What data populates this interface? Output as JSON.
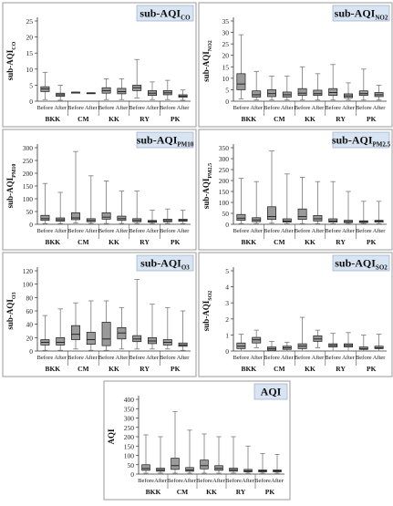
{
  "colors": {
    "box_fill": "#9a9a9a",
    "box_stroke": "#1a1a1a",
    "whisker": "#7a7a7a",
    "title_bg": "#d9e4f2",
    "axis": "#333333",
    "panel_border": "#9a9a9a"
  },
  "chart_data": [
    {
      "type": "box",
      "title_main": "sub-AQI",
      "title_sub": "CO",
      "ylabel_main": "sub-AQI",
      "ylabel_sub": "CO",
      "ylim": [
        0,
        25
      ],
      "yticks": [
        0,
        5,
        10,
        15,
        20,
        25
      ],
      "provinces": [
        "BKK",
        "CM",
        "KK",
        "RY",
        "PK"
      ],
      "periods": [
        "Before",
        "After"
      ],
      "boxes": [
        {
          "province": "BKK",
          "period": "Before",
          "min": 0.5,
          "q1": 3.0,
          "median": 3.8,
          "q3": 4.5,
          "max": 9.0
        },
        {
          "province": "BKK",
          "period": "After",
          "min": 0.3,
          "q1": 1.5,
          "median": 2.0,
          "q3": 2.5,
          "max": 5.0
        },
        {
          "province": "CM",
          "period": "Before",
          "min": 2.8,
          "q1": 2.8,
          "median": 2.8,
          "q3": 2.8,
          "max": 2.8
        },
        {
          "province": "CM",
          "period": "After",
          "min": 2.6,
          "q1": 2.6,
          "median": 2.6,
          "q3": 2.6,
          "max": 2.6
        },
        {
          "province": "KK",
          "period": "Before",
          "min": 0.5,
          "q1": 2.5,
          "median": 3.3,
          "q3": 4.2,
          "max": 7.0
        },
        {
          "province": "KK",
          "period": "After",
          "min": 0.5,
          "q1": 2.3,
          "median": 3.0,
          "q3": 4.0,
          "max": 7.0
        },
        {
          "province": "RY",
          "period": "Before",
          "min": 1.0,
          "q1": 3.3,
          "median": 4.2,
          "q3": 5.0,
          "max": 13.0
        },
        {
          "province": "RY",
          "period": "After",
          "min": 0.5,
          "q1": 1.8,
          "median": 2.5,
          "q3": 3.3,
          "max": 6.0
        },
        {
          "province": "PK",
          "period": "Before",
          "min": 0.5,
          "q1": 2.0,
          "median": 2.6,
          "q3": 3.3,
          "max": 6.5
        },
        {
          "province": "PK",
          "period": "After",
          "min": 0.3,
          "q1": 1.2,
          "median": 1.6,
          "q3": 2.0,
          "max": 3.5
        }
      ]
    },
    {
      "type": "box",
      "title_main": "sub-AQI",
      "title_sub": "NO2",
      "ylabel_main": "sub-AQI",
      "ylabel_sub": "NO2",
      "ylim": [
        0,
        35
      ],
      "yticks": [
        0,
        5,
        10,
        15,
        20,
        25,
        30,
        35
      ],
      "provinces": [
        "BKK",
        "CM",
        "KK",
        "RY",
        "PK"
      ],
      "periods": [
        "Before",
        "After"
      ],
      "boxes": [
        {
          "province": "BKK",
          "period": "Before",
          "min": 1.0,
          "q1": 5.0,
          "median": 7.5,
          "q3": 12.0,
          "max": 29.0
        },
        {
          "province": "BKK",
          "period": "After",
          "min": 0.5,
          "q1": 1.8,
          "median": 2.8,
          "q3": 4.5,
          "max": 13.0
        },
        {
          "province": "CM",
          "period": "Before",
          "min": 0.5,
          "q1": 2.0,
          "median": 3.3,
          "q3": 5.0,
          "max": 11.0
        },
        {
          "province": "CM",
          "period": "After",
          "min": 0.5,
          "q1": 1.8,
          "median": 2.8,
          "q3": 4.0,
          "max": 11.0
        },
        {
          "province": "KK",
          "period": "Before",
          "min": 0.5,
          "q1": 2.5,
          "median": 3.5,
          "q3": 5.5,
          "max": 15.0
        },
        {
          "province": "KK",
          "period": "After",
          "min": 0.5,
          "q1": 2.5,
          "median": 3.3,
          "q3": 4.8,
          "max": 12.0
        },
        {
          "province": "RY",
          "period": "Before",
          "min": 0.5,
          "q1": 2.5,
          "median": 3.8,
          "q3": 5.5,
          "max": 16.0
        },
        {
          "province": "RY",
          "period": "After",
          "min": 0.5,
          "q1": 1.5,
          "median": 2.3,
          "q3": 3.2,
          "max": 8.0
        },
        {
          "province": "PK",
          "period": "Before",
          "min": 0.5,
          "q1": 2.5,
          "median": 3.3,
          "q3": 4.5,
          "max": 14.0
        },
        {
          "province": "PK",
          "period": "After",
          "min": 0.5,
          "q1": 2.0,
          "median": 2.8,
          "q3": 3.8,
          "max": 7.0
        }
      ]
    },
    {
      "type": "box",
      "title_main": "sub-AQI",
      "title_sub": "PM10",
      "ylabel_main": "sub-AQI",
      "ylabel_sub": "PM10",
      "ylim": [
        0,
        300
      ],
      "yticks": [
        0,
        50,
        100,
        150,
        200,
        250,
        300
      ],
      "provinces": [
        "BKK",
        "CM",
        "KK",
        "RY",
        "PK"
      ],
      "periods": [
        "Before",
        "After"
      ],
      "boxes": [
        {
          "province": "BKK",
          "period": "Before",
          "min": 3,
          "q1": 15,
          "median": 22,
          "q3": 35,
          "max": 160
        },
        {
          "province": "BKK",
          "period": "After",
          "min": 3,
          "q1": 12,
          "median": 18,
          "q3": 25,
          "max": 125
        },
        {
          "province": "CM",
          "period": "Before",
          "min": 5,
          "q1": 18,
          "median": 25,
          "q3": 45,
          "max": 285
        },
        {
          "province": "CM",
          "period": "After",
          "min": 3,
          "q1": 10,
          "median": 15,
          "q3": 22,
          "max": 190
        },
        {
          "province": "KK",
          "period": "Before",
          "min": 3,
          "q1": 20,
          "median": 28,
          "q3": 45,
          "max": 170
        },
        {
          "province": "KK",
          "period": "After",
          "min": 3,
          "q1": 15,
          "median": 22,
          "q3": 32,
          "max": 130
        },
        {
          "province": "RY",
          "period": "Before",
          "min": 3,
          "q1": 10,
          "median": 15,
          "q3": 22,
          "max": 130
        },
        {
          "province": "RY",
          "period": "After",
          "min": 3,
          "q1": 8,
          "median": 11,
          "q3": 15,
          "max": 55
        },
        {
          "province": "PK",
          "period": "Before",
          "min": 3,
          "q1": 10,
          "median": 14,
          "q3": 20,
          "max": 60
        },
        {
          "province": "PK",
          "period": "After",
          "min": 3,
          "q1": 12,
          "median": 15,
          "q3": 20,
          "max": 55
        }
      ]
    },
    {
      "type": "box",
      "title_main": "sub-AQI",
      "title_sub": "PM2.5",
      "ylabel_main": "sub-AQI",
      "ylabel_sub": "PM2.5",
      "ylim": [
        0,
        350
      ],
      "yticks": [
        0,
        50,
        100,
        150,
        200,
        250,
        300,
        350
      ],
      "provinces": [
        "BKK",
        "CM",
        "KK",
        "RY",
        "PK"
      ],
      "periods": [
        "Before",
        "After"
      ],
      "boxes": [
        {
          "province": "BKK",
          "period": "Before",
          "min": 3,
          "q1": 18,
          "median": 28,
          "q3": 45,
          "max": 210
        },
        {
          "province": "BKK",
          "period": "After",
          "min": 3,
          "q1": 12,
          "median": 20,
          "q3": 30,
          "max": 195
        },
        {
          "province": "CM",
          "period": "Before",
          "min": 5,
          "q1": 22,
          "median": 35,
          "q3": 80,
          "max": 335
        },
        {
          "province": "CM",
          "period": "After",
          "min": 3,
          "q1": 10,
          "median": 15,
          "q3": 25,
          "max": 230
        },
        {
          "province": "KK",
          "period": "Before",
          "min": 3,
          "q1": 22,
          "median": 35,
          "q3": 70,
          "max": 215
        },
        {
          "province": "KK",
          "period": "After",
          "min": 3,
          "q1": 15,
          "median": 25,
          "q3": 40,
          "max": 195
        },
        {
          "province": "RY",
          "period": "Before",
          "min": 3,
          "q1": 10,
          "median": 15,
          "q3": 25,
          "max": 195
        },
        {
          "province": "RY",
          "period": "After",
          "min": 3,
          "q1": 8,
          "median": 12,
          "q3": 18,
          "max": 150
        },
        {
          "province": "PK",
          "period": "Before",
          "min": 3,
          "q1": 8,
          "median": 12,
          "q3": 16,
          "max": 105
        },
        {
          "province": "PK",
          "period": "After",
          "min": 3,
          "q1": 10,
          "median": 14,
          "q3": 18,
          "max": 105
        }
      ]
    },
    {
      "type": "box",
      "title_main": "sub-AQI",
      "title_sub": "O3",
      "ylabel_main": "sub-AQI",
      "ylabel_sub": "O3",
      "ylim": [
        0,
        120
      ],
      "yticks": [
        0,
        20,
        40,
        60,
        80,
        100,
        120
      ],
      "provinces": [
        "BKK",
        "CM",
        "KK",
        "RY",
        "PK"
      ],
      "periods": [
        "Before",
        "After"
      ],
      "boxes": [
        {
          "province": "BKK",
          "period": "Before",
          "min": 1,
          "q1": 9,
          "median": 13,
          "q3": 17,
          "max": 53
        },
        {
          "province": "BKK",
          "period": "After",
          "min": 1,
          "q1": 9,
          "median": 13,
          "q3": 20,
          "max": 63
        },
        {
          "province": "CM",
          "period": "Before",
          "min": 3,
          "q1": 17,
          "median": 25,
          "q3": 38,
          "max": 72
        },
        {
          "province": "CM",
          "period": "After",
          "min": 1,
          "q1": 10,
          "median": 17,
          "q3": 28,
          "max": 75
        },
        {
          "province": "KK",
          "period": "Before",
          "min": 1,
          "q1": 8,
          "median": 18,
          "q3": 43,
          "max": 75
        },
        {
          "province": "KK",
          "period": "After",
          "min": 3,
          "q1": 18,
          "median": 27,
          "q3": 35,
          "max": 65
        },
        {
          "province": "RY",
          "period": "Before",
          "min": 3,
          "q1": 14,
          "median": 18,
          "q3": 23,
          "max": 107
        },
        {
          "province": "RY",
          "period": "After",
          "min": 3,
          "q1": 11,
          "median": 15,
          "q3": 20,
          "max": 70
        },
        {
          "province": "PK",
          "period": "Before",
          "min": 3,
          "q1": 9,
          "median": 13,
          "q3": 17,
          "max": 65
        },
        {
          "province": "PK",
          "period": "After",
          "min": 1,
          "q1": 7,
          "median": 9,
          "q3": 12,
          "max": 60
        }
      ]
    },
    {
      "type": "box",
      "title_main": "sub-AQI",
      "title_sub": "SO2",
      "ylabel_main": "sub-AQI",
      "ylabel_sub": "SO2",
      "ylim": [
        0,
        5
      ],
      "yticks": [
        0,
        1,
        2,
        3,
        4,
        5
      ],
      "provinces": [
        "BKK",
        "CM",
        "KK",
        "RY",
        "PK"
      ],
      "periods": [
        "Before",
        "After"
      ],
      "boxes": [
        {
          "province": "BKK",
          "period": "Before",
          "min": 0.0,
          "q1": 0.15,
          "median": 0.3,
          "q3": 0.5,
          "max": 1.05
        },
        {
          "province": "BKK",
          "period": "After",
          "min": 0.2,
          "q1": 0.5,
          "median": 0.7,
          "q3": 0.85,
          "max": 1.3
        },
        {
          "province": "CM",
          "period": "Before",
          "min": 0.0,
          "q1": 0.05,
          "median": 0.15,
          "q3": 0.25,
          "max": 0.6
        },
        {
          "province": "CM",
          "period": "After",
          "min": 0.0,
          "q1": 0.1,
          "median": 0.2,
          "q3": 0.3,
          "max": 0.55
        },
        {
          "province": "KK",
          "period": "Before",
          "min": 0.0,
          "q1": 0.15,
          "median": 0.3,
          "q3": 0.45,
          "max": 2.1
        },
        {
          "province": "KK",
          "period": "After",
          "min": 0.2,
          "q1": 0.6,
          "median": 0.75,
          "q3": 0.95,
          "max": 1.3
        },
        {
          "province": "RY",
          "period": "Before",
          "min": 0.0,
          "q1": 0.25,
          "median": 0.35,
          "q3": 0.45,
          "max": 1.1
        },
        {
          "province": "RY",
          "period": "After",
          "min": 0.0,
          "q1": 0.25,
          "median": 0.35,
          "q3": 0.45,
          "max": 1.15
        },
        {
          "province": "PK",
          "period": "Before",
          "min": 0.0,
          "q1": 0.1,
          "median": 0.15,
          "q3": 0.25,
          "max": 1.0
        },
        {
          "province": "PK",
          "period": "After",
          "min": 0.0,
          "q1": 0.15,
          "median": 0.2,
          "q3": 0.3,
          "max": 1.05
        }
      ]
    },
    {
      "type": "box",
      "title_main": "AQI",
      "title_sub": "",
      "ylabel_main": "AQI",
      "ylabel_sub": "",
      "ylim": [
        0,
        400
      ],
      "yticks": [
        0,
        50,
        100,
        150,
        200,
        250,
        300,
        350,
        400
      ],
      "provinces": [
        "BKK",
        "CM",
        "KK",
        "RY",
        "PK"
      ],
      "periods": [
        "Before",
        "After"
      ],
      "boxes": [
        {
          "province": "BKK",
          "period": "Before",
          "min": 5,
          "q1": 20,
          "median": 30,
          "q3": 50,
          "max": 210
        },
        {
          "province": "BKK",
          "period": "After",
          "min": 5,
          "q1": 15,
          "median": 22,
          "q3": 32,
          "max": 200
        },
        {
          "province": "CM",
          "period": "Before",
          "min": 5,
          "q1": 25,
          "median": 45,
          "q3": 85,
          "max": 335
        },
        {
          "province": "CM",
          "period": "After",
          "min": 5,
          "q1": 15,
          "median": 22,
          "q3": 35,
          "max": 235
        },
        {
          "province": "KK",
          "period": "Before",
          "min": 5,
          "q1": 28,
          "median": 45,
          "q3": 75,
          "max": 215
        },
        {
          "province": "KK",
          "period": "After",
          "min": 5,
          "q1": 20,
          "median": 30,
          "q3": 45,
          "max": 200
        },
        {
          "province": "RY",
          "period": "Before",
          "min": 5,
          "q1": 15,
          "median": 22,
          "q3": 32,
          "max": 200
        },
        {
          "province": "RY",
          "period": "After",
          "min": 5,
          "q1": 12,
          "median": 17,
          "q3": 25,
          "max": 150
        },
        {
          "province": "PK",
          "period": "Before",
          "min": 5,
          "q1": 12,
          "median": 17,
          "q3": 22,
          "max": 110
        },
        {
          "province": "PK",
          "period": "After",
          "min": 5,
          "q1": 12,
          "median": 17,
          "q3": 22,
          "max": 105
        }
      ]
    }
  ]
}
